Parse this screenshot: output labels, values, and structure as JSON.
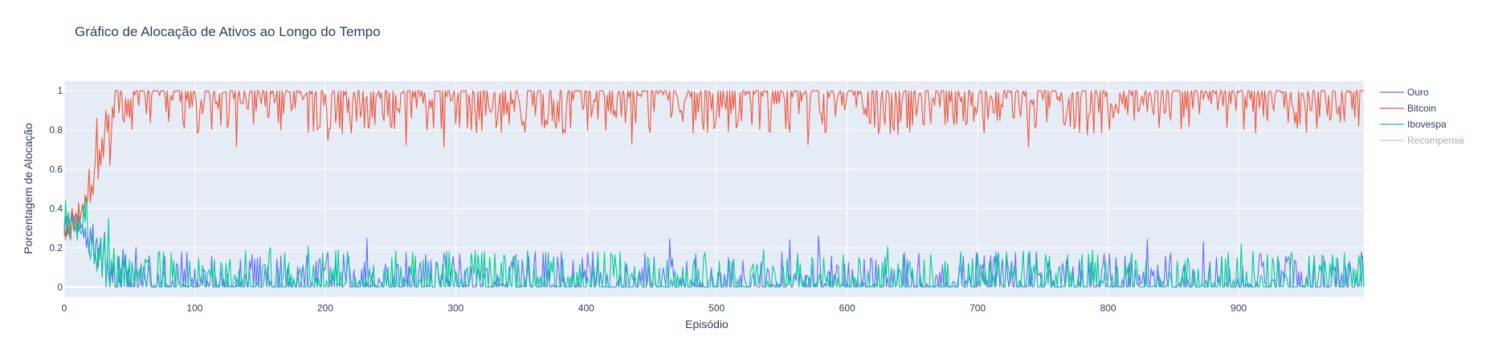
{
  "chart_data": {
    "type": "line",
    "title": "Gráfico de Alocação de Ativos ao Longo do Tempo",
    "xlabel": "Episódio",
    "ylabel": "Porcentagem de Alocação",
    "xlim": [
      0,
      996
    ],
    "ylim": [
      -0.05,
      1.05
    ],
    "x_ticks": [
      0,
      100,
      200,
      300,
      400,
      500,
      600,
      700,
      800,
      900
    ],
    "y_ticks": [
      0,
      0.2,
      0.4,
      0.6,
      0.8,
      1
    ],
    "y_tick_labels": [
      "0",
      "0.2",
      "0.4",
      "0.6",
      "0.8",
      "1"
    ],
    "grid": true,
    "legend_position": "top-right",
    "background_color": "#e5ecf6",
    "episodes": 997,
    "series": [
      {
        "name": "Ouro",
        "color": "#636efa",
        "visible": true,
        "warmup": [
          0.3,
          0.36,
          0.26,
          0.38,
          0.32,
          0.35,
          0.4,
          0.3,
          0.36,
          0.3,
          0.37,
          0.28,
          0.34,
          0.3,
          0.32,
          0.25,
          0.3,
          0.2,
          0.26,
          0.17,
          0.3,
          0.22,
          0.32,
          0.12,
          0.22,
          0.25,
          0.1,
          0.2,
          0.25,
          0.05,
          0.2,
          0.28,
          0.0,
          0.15,
          0.06,
          0.0,
          0.1,
          0.02,
          0.12,
          0.0
        ],
        "steady": {
          "zero_prob": 0.45,
          "base": 0.0,
          "max": 0.18,
          "spike_prob": 0.04,
          "spike_max": 0.26
        }
      },
      {
        "name": "Bitcoin",
        "color": "#ef553b",
        "visible": true,
        "warmup": [
          0.33,
          0.24,
          0.36,
          0.27,
          0.33,
          0.24,
          0.4,
          0.29,
          0.35,
          0.38,
          0.28,
          0.43,
          0.33,
          0.38,
          0.42,
          0.36,
          0.47,
          0.41,
          0.45,
          0.6,
          0.43,
          0.52,
          0.47,
          0.58,
          0.66,
          0.86,
          0.55,
          0.7,
          0.62,
          0.76,
          0.66,
          0.8,
          0.9,
          0.79,
          0.88,
          0.62,
          0.76,
          0.92,
          0.86,
          1.0
        ],
        "steady": {
          "zero_prob": 0.35,
          "base": 1.0,
          "max": 0.22,
          "spike_prob": 0.04,
          "spike_max": 0.32,
          "invert": true
        }
      },
      {
        "name": "Ibovespa",
        "color": "#00cc96",
        "visible": true,
        "warmup": [
          0.26,
          0.44,
          0.3,
          0.38,
          0.25,
          0.31,
          0.34,
          0.37,
          0.28,
          0.32,
          0.24,
          0.36,
          0.3,
          0.27,
          0.29,
          0.42,
          0.33,
          0.46,
          0.26,
          0.2,
          0.14,
          0.2,
          0.27,
          0.12,
          0.17,
          0.08,
          0.2,
          0.14,
          0.25,
          0.05,
          0.18,
          0.25,
          0.02,
          0.12,
          0.35,
          0.0,
          0.14,
          0.06,
          0.2,
          0.0
        ],
        "steady": {
          "zero_prob": 0.4,
          "base": 0.0,
          "max": 0.19,
          "spike_prob": 0.04,
          "spike_max": 0.23
        }
      },
      {
        "name": "Recompensa",
        "color": "#ab63fa",
        "visible": false,
        "warmup": [],
        "steady": {}
      }
    ]
  }
}
